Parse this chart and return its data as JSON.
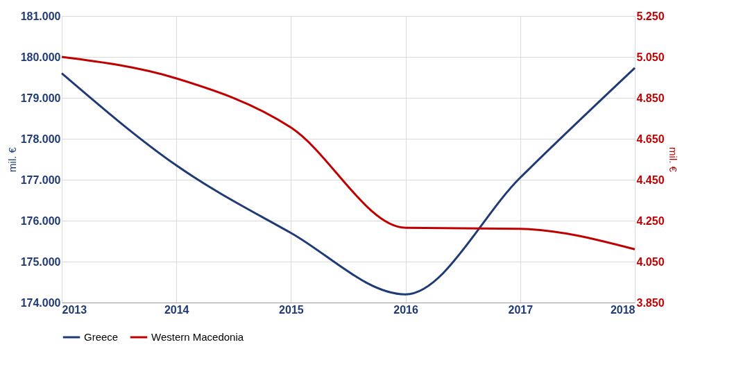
{
  "chart_data": {
    "type": "line",
    "xlabel": null,
    "ylabel": "mil.  €",
    "y2label": "mil.  €",
    "x": [
      2013,
      2014,
      2015,
      2016,
      2017,
      2018
    ],
    "series": [
      {
        "name": "Greece",
        "color": "#1f3a75",
        "values": [
          179600,
          177350,
          175700,
          174200,
          177050,
          179730
        ]
      },
      {
        "name": "Western Macedonia",
        "color": "#c00000",
        "axis": "y2",
        "values": [
          5050,
          4945,
          4705,
          4215,
          4210,
          4110
        ]
      }
    ],
    "xlim": [
      2013,
      2018
    ],
    "xticks": [
      2013,
      2014,
      2015,
      2016,
      2017,
      2018
    ],
    "ylim": [
      174000,
      181000
    ],
    "yticks": [
      {
        "value": 174000,
        "label": "174.000"
      },
      {
        "value": 175000,
        "label": "175.000"
      },
      {
        "value": 176000,
        "label": "176.000"
      },
      {
        "value": 177000,
        "label": "177.000"
      },
      {
        "value": 178000,
        "label": "178.000"
      },
      {
        "value": 179000,
        "label": "179.000"
      },
      {
        "value": 180000,
        "label": "180.000"
      },
      {
        "value": 181000,
        "label": "181.000"
      }
    ],
    "y2lim": [
      3850,
      5250
    ],
    "y2ticks": [
      {
        "value": 3850,
        "label": "3.850"
      },
      {
        "value": 4050,
        "label": "4.050"
      },
      {
        "value": 4250,
        "label": "4.250"
      },
      {
        "value": 4450,
        "label": "4.450"
      },
      {
        "value": 4650,
        "label": "4.650"
      },
      {
        "value": 4850,
        "label": "4.850"
      },
      {
        "value": 5050,
        "label": "5.050"
      },
      {
        "value": 5250,
        "label": "5.250"
      }
    ],
    "grid": true,
    "legend": "bottom",
    "marker": "none",
    "line_style": "solid"
  }
}
